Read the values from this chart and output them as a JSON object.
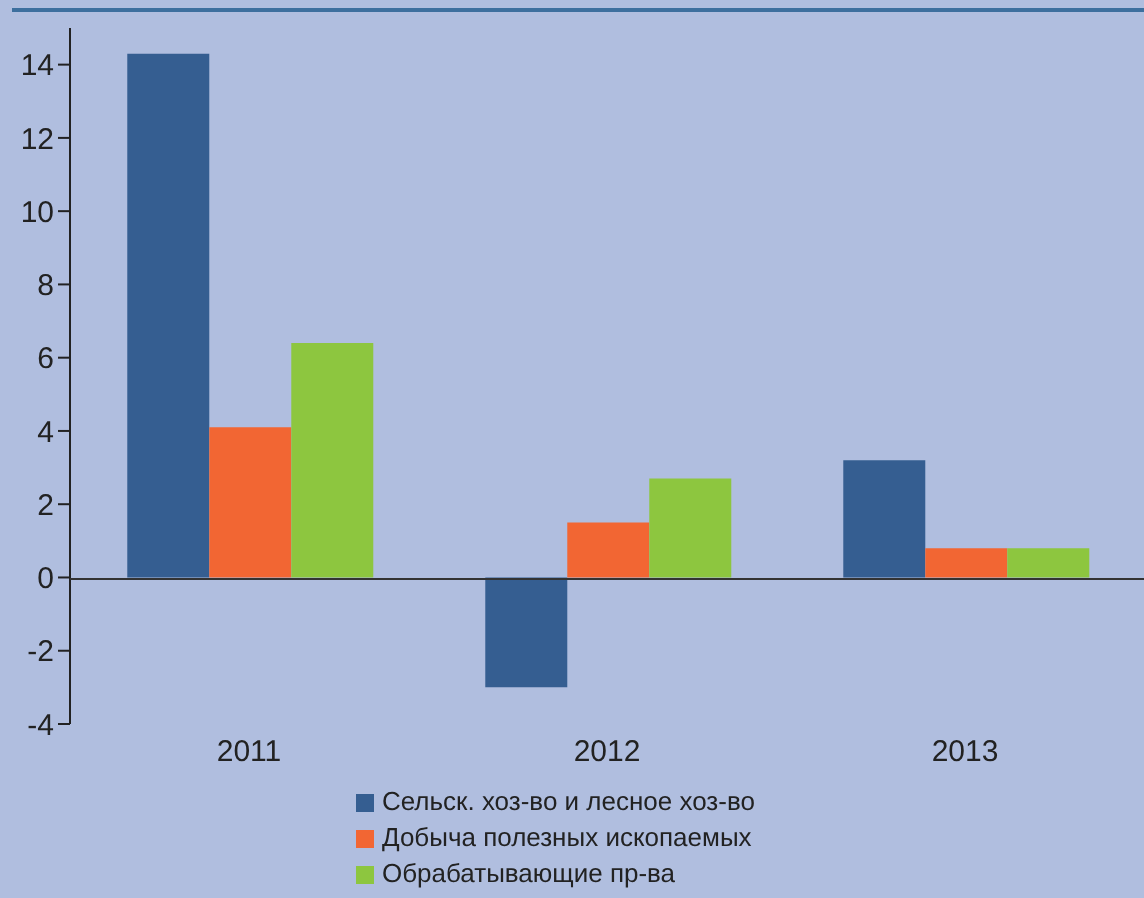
{
  "chart_data": {
    "type": "bar",
    "categories": [
      "2011",
      "2012",
      "2013"
    ],
    "series": [
      {
        "name": "Сельск. хоз-во и лесное хоз-во",
        "color": "#355e91",
        "values": [
          14.3,
          -3.0,
          3.2
        ]
      },
      {
        "name": "Добыча полезных ископаемых",
        "color": "#f26633",
        "values": [
          4.1,
          1.5,
          0.8
        ]
      },
      {
        "name": "Обрабатывающие пр-ва",
        "color": "#8dc63f",
        "values": [
          6.4,
          2.7,
          0.8
        ]
      }
    ],
    "ylim": [
      -4,
      15
    ],
    "yticks": [
      -4,
      -2,
      0,
      2,
      4,
      6,
      8,
      10,
      12,
      14
    ],
    "grid": false,
    "legend": "bottom"
  }
}
